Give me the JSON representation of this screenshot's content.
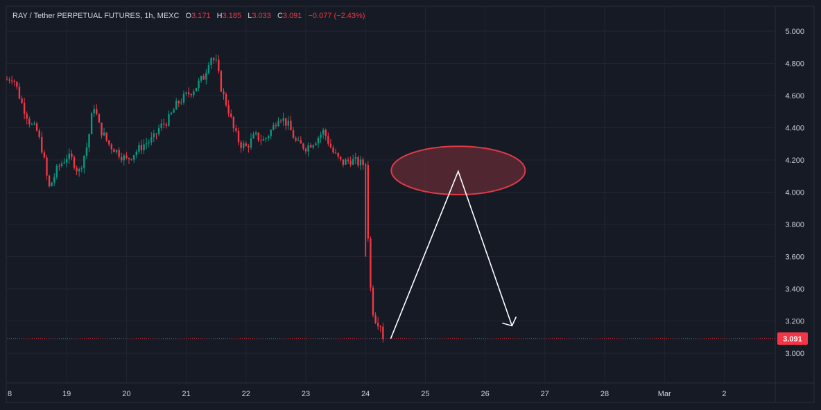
{
  "header": {
    "symbol": "RAY / Tether PERPETUAL FUTURES, 1h, MEXC",
    "o_label": "O",
    "o_value": "3.171",
    "h_label": "H",
    "h_value": "3.185",
    "l_label": "L",
    "l_value": "3.033",
    "c_label": "C",
    "c_value": "3.091",
    "change": "−0.077 (−2.43%)"
  },
  "colors": {
    "background": "#161a25",
    "grid": "#232632",
    "up": "#089981",
    "down": "#f23645",
    "annotation_fill": "#5a2a32",
    "annotation_stroke": "#e03a48",
    "arrow": "#ffffff"
  },
  "chart_data": {
    "type": "candlestick",
    "ylim": [
      2.8,
      5.1
    ],
    "y_ticks": [
      "5.000",
      "4.800",
      "4.600",
      "4.400",
      "4.200",
      "4.000",
      "3.800",
      "3.600",
      "3.400",
      "3.200",
      "3.000"
    ],
    "x_ticks": [
      "8",
      "19",
      "20",
      "21",
      "22",
      "23",
      "24",
      "25",
      "26",
      "27",
      "28",
      "Mar",
      "2"
    ],
    "x_tick_days": [
      18,
      19,
      20,
      21,
      22,
      23,
      24,
      25,
      26,
      27,
      28,
      29,
      30
    ],
    "xlim_days": [
      18.0,
      31.5
    ],
    "last_price": "3.091",
    "last_price_value": 3.091,
    "price_path": [
      [
        18.0,
        4.7
      ],
      [
        18.1,
        4.72
      ],
      [
        18.25,
        4.55
      ],
      [
        18.4,
        4.42
      ],
      [
        18.5,
        4.38
      ],
      [
        18.6,
        4.25
      ],
      [
        18.7,
        4.02
      ],
      [
        18.85,
        4.15
      ],
      [
        19.0,
        4.22
      ],
      [
        19.1,
        4.2
      ],
      [
        19.2,
        4.12
      ],
      [
        19.35,
        4.3
      ],
      [
        19.45,
        4.55
      ],
      [
        19.55,
        4.4
      ],
      [
        19.7,
        4.3
      ],
      [
        19.85,
        4.25
      ],
      [
        20.0,
        4.2
      ],
      [
        20.15,
        4.25
      ],
      [
        20.3,
        4.3
      ],
      [
        20.45,
        4.33
      ],
      [
        20.55,
        4.4
      ],
      [
        20.7,
        4.45
      ],
      [
        20.85,
        4.55
      ],
      [
        21.0,
        4.6
      ],
      [
        21.15,
        4.65
      ],
      [
        21.3,
        4.72
      ],
      [
        21.4,
        4.85
      ],
      [
        21.5,
        4.8
      ],
      [
        21.6,
        4.62
      ],
      [
        21.7,
        4.52
      ],
      [
        21.8,
        4.38
      ],
      [
        21.9,
        4.3
      ],
      [
        22.0,
        4.28
      ],
      [
        22.15,
        4.35
      ],
      [
        22.3,
        4.32
      ],
      [
        22.45,
        4.4
      ],
      [
        22.55,
        4.48
      ],
      [
        22.7,
        4.42
      ],
      [
        22.85,
        4.3
      ],
      [
        23.0,
        4.28
      ],
      [
        23.15,
        4.32
      ],
      [
        23.3,
        4.38
      ],
      [
        23.45,
        4.25
      ],
      [
        23.6,
        4.18
      ],
      [
        23.75,
        4.2
      ],
      [
        23.9,
        4.18
      ],
      [
        24.0,
        4.17
      ],
      [
        24.05,
        3.62
      ],
      [
        24.1,
        3.3
      ],
      [
        24.15,
        3.22
      ],
      [
        24.2,
        3.2
      ],
      [
        24.25,
        3.18
      ],
      [
        24.3,
        3.09
      ]
    ],
    "annotations": {
      "ellipse": {
        "center_day": 25.55,
        "center_price": 4.135,
        "radius_days": 1.12,
        "radius_price": 0.15
      },
      "resistance_line": {
        "day": 24.0,
        "price_top": 4.18,
        "price_bottom": 3.6
      },
      "arrow_path": [
        [
          24.42,
          3.09
        ],
        [
          25.55,
          4.13
        ],
        [
          26.45,
          3.17
        ]
      ]
    }
  }
}
